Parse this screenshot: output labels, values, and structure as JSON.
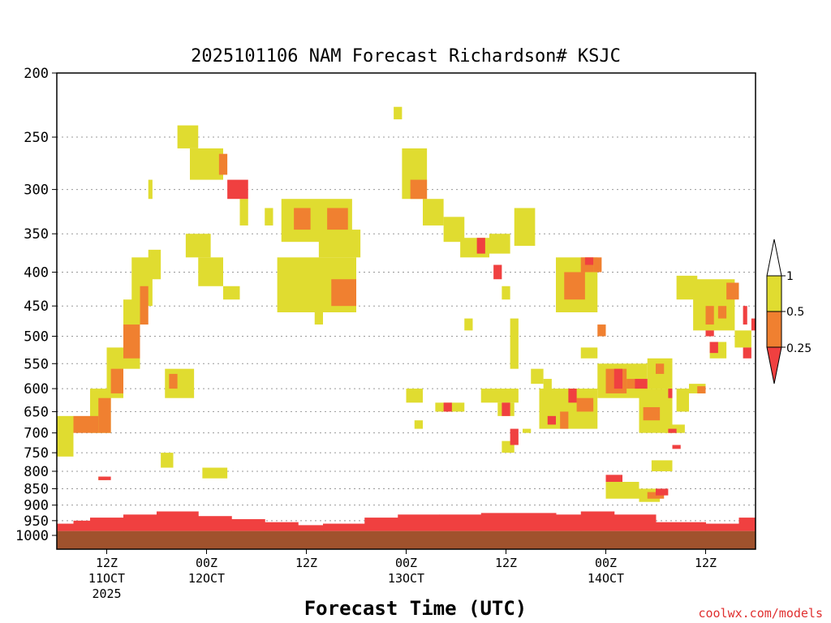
{
  "chart_data": {
    "type": "heatmap",
    "title": "2025101106 NAM Forecast Richardson# KSJC",
    "xlabel": "Forecast Time (UTC)",
    "ylabel": "",
    "credit": "coolwx.com/models",
    "y_axis": {
      "scale": "log-pressure",
      "direction": "decreasing-upward",
      "range": [
        1000,
        200
      ],
      "ticks": [
        "200",
        "250",
        "300",
        "350",
        "400",
        "450",
        "500",
        "550",
        "600",
        "650",
        "700",
        "750",
        "800",
        "850",
        "900",
        "950",
        "1000"
      ],
      "grid": "dotted"
    },
    "x_axis": {
      "ticks": [
        {
          "l1": "12Z",
          "l2": "11OCT",
          "l3": "2025"
        },
        {
          "l1": "00Z",
          "l2": "12OCT",
          "l3": ""
        },
        {
          "l1": "12Z",
          "l2": "",
          "l3": ""
        },
        {
          "l1": "00Z",
          "l2": "13OCT",
          "l3": ""
        },
        {
          "l1": "12Z",
          "l2": "",
          "l3": ""
        },
        {
          "l1": "00Z",
          "l2": "14OCT",
          "l3": ""
        },
        {
          "l1": "12Z",
          "l2": "",
          "l3": ""
        }
      ],
      "range_hours": [
        6,
        90
      ]
    },
    "colorbar": {
      "labels": [
        "1",
        "0.5",
        "0.25"
      ],
      "colors": {
        "ri_lt_025": "#f04040",
        "ri_025_05": "#f08030",
        "ri_05_1": "#e0dc30",
        "ri_gt_1": "#ffffff"
      }
    },
    "ground_color": "#a0522d",
    "blobs": [
      {
        "c": "y",
        "t": [
          6.0,
          8.0
        ],
        "p": [
          660,
          760
        ]
      },
      {
        "c": "o",
        "t": [
          8.0,
          11.0
        ],
        "p": [
          660,
          700
        ]
      },
      {
        "c": "y",
        "t": [
          10.0,
          12.5
        ],
        "p": [
          600,
          700
        ]
      },
      {
        "c": "o",
        "t": [
          11.0,
          12.5
        ],
        "p": [
          620,
          700
        ]
      },
      {
        "c": "y",
        "t": [
          12.0,
          14.0
        ],
        "p": [
          520,
          620
        ]
      },
      {
        "c": "o",
        "t": [
          12.5,
          14.0
        ],
        "p": [
          560,
          610
        ]
      },
      {
        "c": "y",
        "t": [
          14.0,
          16.0
        ],
        "p": [
          440,
          560
        ]
      },
      {
        "c": "o",
        "t": [
          14.0,
          16.0
        ],
        "p": [
          480,
          540
        ]
      },
      {
        "c": "y",
        "t": [
          15.0,
          17.5
        ],
        "p": [
          380,
          450
        ]
      },
      {
        "c": "o",
        "t": [
          16.0,
          17.0
        ],
        "p": [
          420,
          480
        ]
      },
      {
        "c": "y",
        "t": [
          17.0,
          18.5
        ],
        "p": [
          370,
          410
        ]
      },
      {
        "c": "y",
        "t": [
          17.0,
          17.5
        ],
        "p": [
          290,
          310
        ]
      },
      {
        "c": "y",
        "t": [
          11.0,
          12.0
        ],
        "p": [
          815,
          825
        ]
      },
      {
        "c": "r",
        "t": [
          11.0,
          12.5
        ],
        "p": [
          815,
          825
        ]
      },
      {
        "c": "y",
        "t": [
          18.5,
          20.0
        ],
        "p": [
          750,
          790
        ]
      },
      {
        "c": "y",
        "t": [
          19.0,
          22.5
        ],
        "p": [
          560,
          620
        ]
      },
      {
        "c": "o",
        "t": [
          19.5,
          20.5
        ],
        "p": [
          570,
          600
        ]
      },
      {
        "c": "y",
        "t": [
          20.5,
          23.0
        ],
        "p": [
          240,
          260
        ]
      },
      {
        "c": "y",
        "t": [
          22.0,
          26.0
        ],
        "p": [
          260,
          290
        ]
      },
      {
        "c": "o",
        "t": [
          25.5,
          26.5
        ],
        "p": [
          265,
          285
        ]
      },
      {
        "c": "r",
        "t": [
          26.5,
          29.0
        ],
        "p": [
          290,
          310
        ]
      },
      {
        "c": "y",
        "t": [
          28.0,
          29.0
        ],
        "p": [
          310,
          340
        ]
      },
      {
        "c": "y",
        "t": [
          21.5,
          24.5
        ],
        "p": [
          350,
          380
        ]
      },
      {
        "c": "y",
        "t": [
          23.0,
          26.0
        ],
        "p": [
          380,
          420
        ]
      },
      {
        "c": "y",
        "t": [
          26.0,
          28.0
        ],
        "p": [
          420,
          440
        ]
      },
      {
        "c": "y",
        "t": [
          23.5,
          26.5
        ],
        "p": [
          790,
          820
        ]
      },
      {
        "c": "y",
        "t": [
          31.0,
          32.0
        ],
        "p": [
          320,
          340
        ]
      },
      {
        "c": "y",
        "t": [
          33.0,
          41.5
        ],
        "p": [
          310,
          360
        ]
      },
      {
        "c": "o",
        "t": [
          34.5,
          36.5
        ],
        "p": [
          320,
          345
        ]
      },
      {
        "c": "o",
        "t": [
          38.5,
          41.0
        ],
        "p": [
          320,
          345
        ]
      },
      {
        "c": "y",
        "t": [
          37.5,
          42.5
        ],
        "p": [
          345,
          380
        ]
      },
      {
        "c": "y",
        "t": [
          32.5,
          42.0
        ],
        "p": [
          380,
          460
        ]
      },
      {
        "c": "o",
        "t": [
          39.0,
          42.0
        ],
        "p": [
          410,
          450
        ]
      },
      {
        "c": "y",
        "t": [
          37.0,
          38.0
        ],
        "p": [
          460,
          480
        ]
      },
      {
        "c": "y",
        "t": [
          46.5,
          47.5
        ],
        "p": [
          225,
          235
        ]
      },
      {
        "c": "y",
        "t": [
          47.5,
          50.5
        ],
        "p": [
          260,
          310
        ]
      },
      {
        "c": "o",
        "t": [
          48.5,
          50.5
        ],
        "p": [
          290,
          310
        ]
      },
      {
        "c": "y",
        "t": [
          50.0,
          52.5
        ],
        "p": [
          310,
          340
        ]
      },
      {
        "c": "y",
        "t": [
          52.5,
          55.0
        ],
        "p": [
          330,
          360
        ]
      },
      {
        "c": "y",
        "t": [
          54.5,
          58.0
        ],
        "p": [
          355,
          380
        ]
      },
      {
        "c": "r",
        "t": [
          56.5,
          57.5
        ],
        "p": [
          355,
          375
        ]
      },
      {
        "c": "y",
        "t": [
          58.0,
          60.5
        ],
        "p": [
          350,
          375
        ]
      },
      {
        "c": "r",
        "t": [
          58.5,
          59.5
        ],
        "p": [
          390,
          410
        ]
      },
      {
        "c": "y",
        "t": [
          59.5,
          60.5
        ],
        "p": [
          420,
          440
        ]
      },
      {
        "c": "y",
        "t": [
          61.0,
          63.5
        ],
        "p": [
          320,
          365
        ]
      },
      {
        "c": "y",
        "t": [
          60.5,
          61.5
        ],
        "p": [
          470,
          560
        ]
      },
      {
        "c": "y",
        "t": [
          55.0,
          56.0
        ],
        "p": [
          470,
          490
        ]
      },
      {
        "c": "y",
        "t": [
          48.0,
          50.0
        ],
        "p": [
          600,
          630
        ]
      },
      {
        "c": "y",
        "t": [
          49.0,
          50.0
        ],
        "p": [
          670,
          690
        ]
      },
      {
        "c": "y",
        "t": [
          51.5,
          55.0
        ],
        "p": [
          630,
          650
        ]
      },
      {
        "c": "r",
        "t": [
          52.5,
          53.5
        ],
        "p": [
          630,
          650
        ]
      },
      {
        "c": "y",
        "t": [
          57.0,
          61.5
        ],
        "p": [
          600,
          630
        ]
      },
      {
        "c": "y",
        "t": [
          59.0,
          61.0
        ],
        "p": [
          630,
          660
        ]
      },
      {
        "c": "r",
        "t": [
          59.5,
          60.5
        ],
        "p": [
          630,
          660
        ]
      },
      {
        "c": "r",
        "t": [
          60.5,
          61.5
        ],
        "p": [
          690,
          730
        ]
      },
      {
        "c": "y",
        "t": [
          59.5,
          61.0
        ],
        "p": [
          720,
          750
        ]
      },
      {
        "c": "y",
        "t": [
          62.0,
          63.0
        ],
        "p": [
          690,
          700
        ]
      },
      {
        "c": "y",
        "t": [
          63.0,
          64.5
        ],
        "p": [
          560,
          590
        ]
      },
      {
        "c": "y",
        "t": [
          64.5,
          65.5
        ],
        "p": [
          580,
          610
        ]
      },
      {
        "c": "y",
        "t": [
          64.0,
          71.0
        ],
        "p": [
          600,
          690
        ]
      },
      {
        "c": "r",
        "t": [
          65.0,
          66.0
        ],
        "p": [
          660,
          680
        ]
      },
      {
        "c": "o",
        "t": [
          66.5,
          67.5
        ],
        "p": [
          650,
          690
        ]
      },
      {
        "c": "r",
        "t": [
          67.5,
          68.5
        ],
        "p": [
          600,
          630
        ]
      },
      {
        "c": "o",
        "t": [
          68.5,
          70.5
        ],
        "p": [
          620,
          650
        ]
      },
      {
        "c": "y",
        "t": [
          66.0,
          71.0
        ],
        "p": [
          380,
          460
        ]
      },
      {
        "c": "o",
        "t": [
          67.0,
          69.5
        ],
        "p": [
          400,
          440
        ]
      },
      {
        "c": "o",
        "t": [
          69.0,
          70.5
        ],
        "p": [
          380,
          400
        ]
      },
      {
        "c": "r",
        "t": [
          69.5,
          70.5
        ],
        "p": [
          380,
          390
        ]
      },
      {
        "c": "o",
        "t": [
          70.5,
          71.5
        ],
        "p": [
          380,
          400
        ]
      },
      {
        "c": "o",
        "t": [
          71.0,
          72.0
        ],
        "p": [
          480,
          500
        ]
      },
      {
        "c": "y",
        "t": [
          69.0,
          71.0
        ],
        "p": [
          520,
          540
        ]
      },
      {
        "c": "y",
        "t": [
          71.0,
          77.0
        ],
        "p": [
          550,
          620
        ]
      },
      {
        "c": "o",
        "t": [
          72.0,
          74.5
        ],
        "p": [
          560,
          610
        ]
      },
      {
        "c": "r",
        "t": [
          73.0,
          74.0
        ],
        "p": [
          560,
          600
        ]
      },
      {
        "c": "o",
        "t": [
          74.5,
          76.0
        ],
        "p": [
          580,
          600
        ]
      },
      {
        "c": "r",
        "t": [
          75.5,
          77.0
        ],
        "p": [
          580,
          600
        ]
      },
      {
        "c": "y",
        "t": [
          76.0,
          80.0
        ],
        "p": [
          600,
          700
        ]
      },
      {
        "c": "o",
        "t": [
          76.5,
          78.5
        ],
        "p": [
          640,
          670
        ]
      },
      {
        "c": "y",
        "t": [
          77.0,
          80.0
        ],
        "p": [
          540,
          600
        ]
      },
      {
        "c": "o",
        "t": [
          78.0,
          79.0
        ],
        "p": [
          550,
          570
        ]
      },
      {
        "c": "y",
        "t": [
          77.5,
          80.0
        ],
        "p": [
          770,
          800
        ]
      },
      {
        "c": "r",
        "t": [
          79.5,
          80.0
        ],
        "p": [
          600,
          620
        ]
      },
      {
        "c": "y",
        "t": [
          79.0,
          81.5
        ],
        "p": [
          680,
          700
        ]
      },
      {
        "c": "r",
        "t": [
          79.5,
          80.5
        ],
        "p": [
          690,
          700
        ]
      },
      {
        "c": "r",
        "t": [
          80.0,
          81.0
        ],
        "p": [
          730,
          740
        ]
      },
      {
        "c": "y",
        "t": [
          80.5,
          82.0
        ],
        "p": [
          600,
          650
        ]
      },
      {
        "c": "y",
        "t": [
          82.0,
          84.0
        ],
        "p": [
          590,
          610
        ]
      },
      {
        "c": "o",
        "t": [
          83.0,
          84.0
        ],
        "p": [
          595,
          610
        ]
      },
      {
        "c": "y",
        "t": [
          80.5,
          83.0
        ],
        "p": [
          405,
          440
        ]
      },
      {
        "c": "y",
        "t": [
          82.5,
          87.5
        ],
        "p": [
          410,
          490
        ]
      },
      {
        "c": "o",
        "t": [
          86.5,
          88.0
        ],
        "p": [
          415,
          440
        ]
      },
      {
        "c": "o",
        "t": [
          84.0,
          85.0
        ],
        "p": [
          450,
          480
        ]
      },
      {
        "c": "o",
        "t": [
          85.5,
          86.5
        ],
        "p": [
          450,
          470
        ]
      },
      {
        "c": "r",
        "t": [
          84.0,
          85.0
        ],
        "p": [
          490,
          500
        ]
      },
      {
        "c": "r",
        "t": [
          84.5,
          85.5
        ],
        "p": [
          510,
          530
        ]
      },
      {
        "c": "y",
        "t": [
          84.5,
          86.5
        ],
        "p": [
          510,
          540
        ]
      },
      {
        "c": "r",
        "t": [
          88.5,
          89.5
        ],
        "p": [
          520,
          540
        ]
      },
      {
        "c": "r",
        "t": [
          88.5,
          89.0
        ],
        "p": [
          450,
          480
        ]
      },
      {
        "c": "r",
        "t": [
          89.5,
          90.0
        ],
        "p": [
          470,
          490
        ]
      },
      {
        "c": "y",
        "t": [
          87.5,
          89.5
        ],
        "p": [
          490,
          520
        ]
      },
      {
        "c": "r",
        "t": [
          72.0,
          74.0
        ],
        "p": [
          810,
          830
        ]
      },
      {
        "c": "y",
        "t": [
          72.0,
          76.0
        ],
        "p": [
          830,
          880
        ]
      },
      {
        "c": "y",
        "t": [
          76.0,
          78.5
        ],
        "p": [
          850,
          890
        ]
      },
      {
        "c": "o",
        "t": [
          77.0,
          79.0
        ],
        "p": [
          860,
          880
        ]
      },
      {
        "c": "r",
        "t": [
          78.0,
          79.5
        ],
        "p": [
          850,
          870
        ]
      }
    ],
    "red_layer": [
      {
        "t": [
          6.0,
          8.0
        ],
        "top": 960
      },
      {
        "t": [
          8.0,
          10.0
        ],
        "top": 950
      },
      {
        "t": [
          10.0,
          14.0
        ],
        "top": 940
      },
      {
        "t": [
          14.0,
          18.0
        ],
        "top": 930
      },
      {
        "t": [
          18.0,
          23.0
        ],
        "top": 920
      },
      {
        "t": [
          23.0,
          27.0
        ],
        "top": 935
      },
      {
        "t": [
          27.0,
          31.0
        ],
        "top": 945
      },
      {
        "t": [
          31.0,
          35.0
        ],
        "top": 955
      },
      {
        "t": [
          35.0,
          38.0
        ],
        "top": 965
      },
      {
        "t": [
          38.0,
          43.0
        ],
        "top": 960
      },
      {
        "t": [
          43.0,
          47.0
        ],
        "top": 940
      },
      {
        "t": [
          47.0,
          52.0
        ],
        "top": 930
      },
      {
        "t": [
          52.0,
          57.0
        ],
        "top": 930
      },
      {
        "t": [
          57.0,
          61.0
        ],
        "top": 925
      },
      {
        "t": [
          61.0,
          66.0
        ],
        "top": 925
      },
      {
        "t": [
          66.0,
          69.0
        ],
        "top": 930
      },
      {
        "t": [
          69.0,
          73.0
        ],
        "top": 920
      },
      {
        "t": [
          73.0,
          78.0
        ],
        "top": 930
      },
      {
        "t": [
          78.0,
          84.0
        ],
        "top": 955
      },
      {
        "t": [
          84.0,
          88.0
        ],
        "top": 960
      },
      {
        "t": [
          88.0,
          90.0
        ],
        "top": 940
      }
    ],
    "ground_top": 985
  }
}
